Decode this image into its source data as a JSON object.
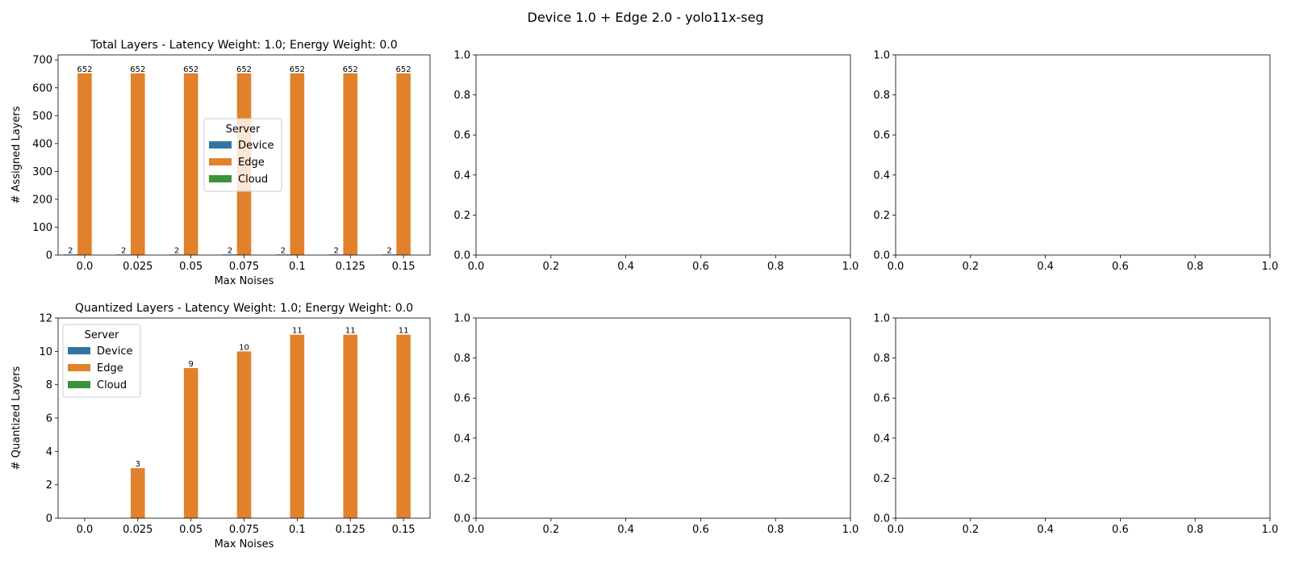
{
  "figure": {
    "title": "Device 1.0 + Edge 2.0 - yolo11x-seg"
  },
  "chart_data": [
    {
      "type": "bar",
      "title": "Total Layers - Latency Weight: 1.0; Energy Weight: 0.0",
      "xlabel": "Max Noises",
      "ylabel": "# Assigned Layers",
      "categories": [
        "0.0",
        "0.025",
        "0.05",
        "0.075",
        "0.1",
        "0.125",
        "0.15"
      ],
      "series": [
        {
          "name": "Device",
          "color": "#3274a1",
          "values": [
            2,
            2,
            2,
            2,
            2,
            2,
            2
          ]
        },
        {
          "name": "Edge",
          "color": "#e1812c",
          "values": [
            652,
            652,
            652,
            652,
            652,
            652,
            652
          ]
        },
        {
          "name": "Cloud",
          "color": "#3a923a",
          "values": [
            0,
            0,
            0,
            0,
            0,
            0,
            0
          ]
        }
      ],
      "bar_labels": [
        [
          "2",
          "2",
          "2",
          "2",
          "2",
          "2",
          "2"
        ],
        [
          "652",
          "652",
          "652",
          "652",
          "652",
          "652",
          "652"
        ],
        [
          "",
          "",
          "",
          "",
          "",
          "",
          ""
        ]
      ],
      "ylim": [
        0,
        718
      ],
      "yticks": [
        "0",
        "100",
        "200",
        "300",
        "400",
        "500",
        "600",
        "700"
      ],
      "legend": {
        "title": "Server",
        "position": "center"
      },
      "grid": false
    },
    {
      "type": "empty",
      "xticks": [
        "0.0",
        "0.2",
        "0.4",
        "0.6",
        "0.8",
        "1.0"
      ],
      "yticks": [
        "0.0",
        "0.2",
        "0.4",
        "0.6",
        "0.8",
        "1.0"
      ]
    },
    {
      "type": "empty",
      "xticks": [
        "0.0",
        "0.2",
        "0.4",
        "0.6",
        "0.8",
        "1.0"
      ],
      "yticks": [
        "0.0",
        "0.2",
        "0.4",
        "0.6",
        "0.8",
        "1.0"
      ]
    },
    {
      "type": "bar",
      "title": "Quantized Layers - Latency Weight: 1.0; Energy Weight: 0.0",
      "xlabel": "Max Noises",
      "ylabel": "# Quantized Layers",
      "categories": [
        "0.0",
        "0.025",
        "0.05",
        "0.075",
        "0.1",
        "0.125",
        "0.15"
      ],
      "series": [
        {
          "name": "Device",
          "color": "#3274a1",
          "values": [
            0,
            0,
            0,
            0,
            0,
            0,
            0
          ]
        },
        {
          "name": "Edge",
          "color": "#e1812c",
          "values": [
            0,
            3,
            9,
            10,
            11,
            11,
            11
          ]
        },
        {
          "name": "Cloud",
          "color": "#3a923a",
          "values": [
            0,
            0,
            0,
            0,
            0,
            0,
            0
          ]
        }
      ],
      "bar_labels": [
        [
          "",
          "",
          "",
          "",
          "",
          "",
          ""
        ],
        [
          "",
          "3",
          "9",
          "10",
          "11",
          "11",
          "11"
        ],
        [
          "",
          "",
          "",
          "",
          "",
          "",
          ""
        ]
      ],
      "ylim": [
        0,
        12
      ],
      "yticks": [
        "0",
        "2",
        "4",
        "6",
        "8",
        "10",
        "12"
      ],
      "legend": {
        "title": "Server",
        "position": "upper left"
      },
      "grid": false
    },
    {
      "type": "empty",
      "xticks": [
        "0.0",
        "0.2",
        "0.4",
        "0.6",
        "0.8",
        "1.0"
      ],
      "yticks": [
        "0.0",
        "0.2",
        "0.4",
        "0.6",
        "0.8",
        "1.0"
      ]
    },
    {
      "type": "empty",
      "xticks": [
        "0.0",
        "0.2",
        "0.4",
        "0.6",
        "0.8",
        "1.0"
      ],
      "yticks": [
        "0.0",
        "0.2",
        "0.4",
        "0.6",
        "0.8",
        "1.0"
      ]
    }
  ]
}
